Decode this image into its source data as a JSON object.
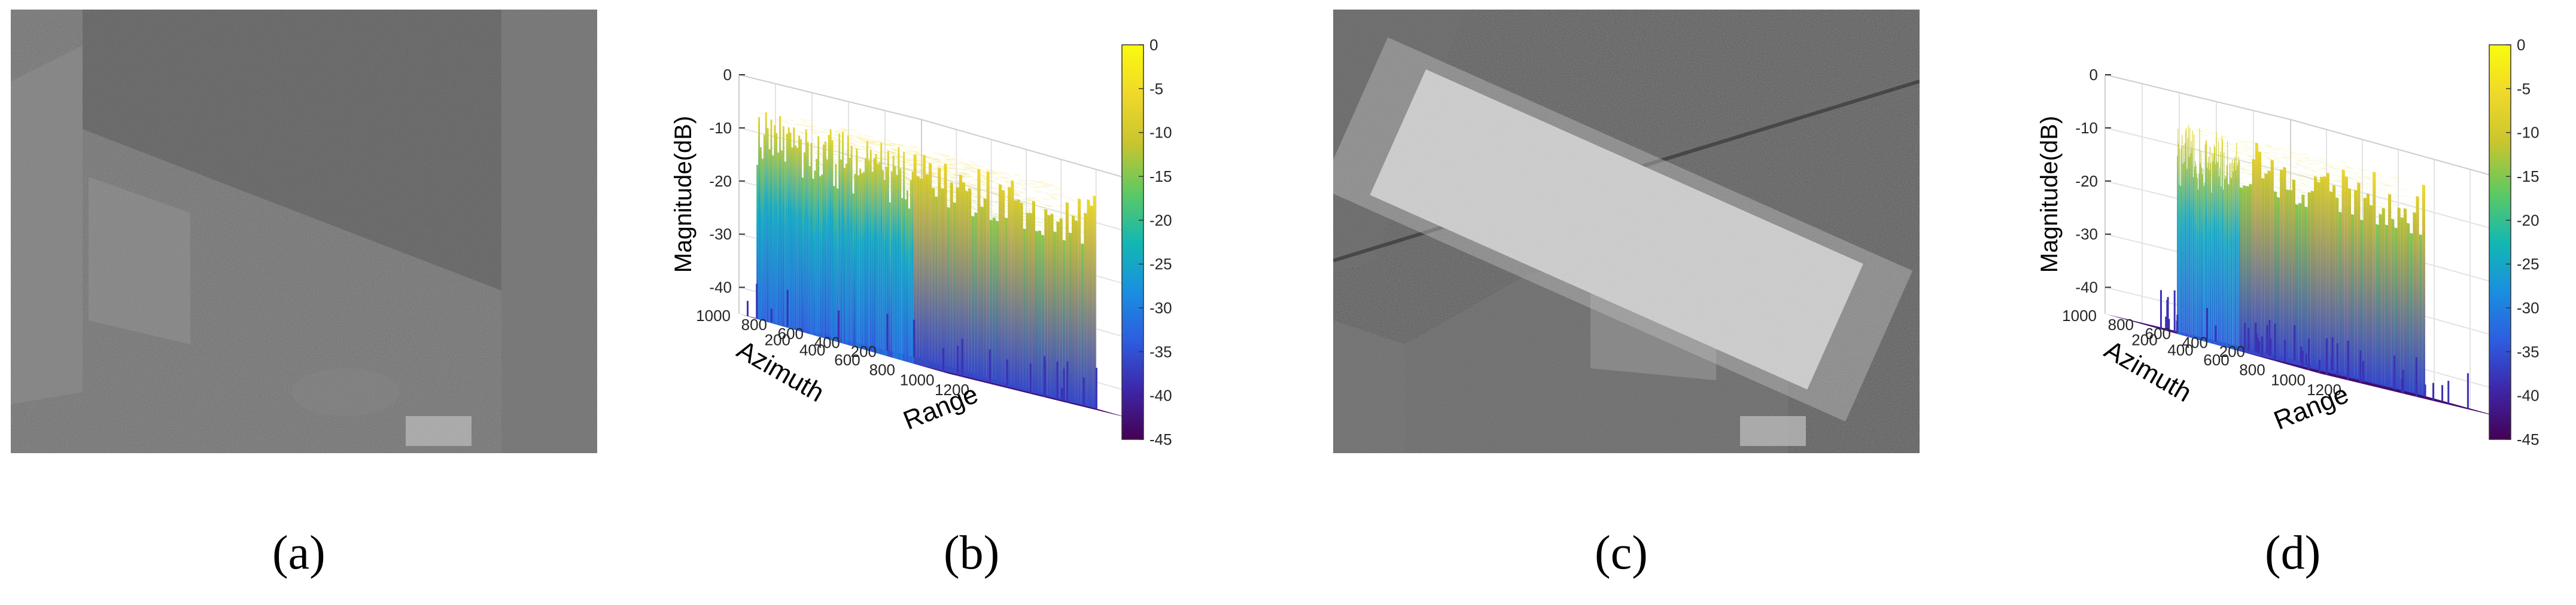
{
  "captions": [
    "(a)",
    "(b)",
    "(c)",
    "(d)"
  ],
  "chart_data": [
    {
      "type": "surface",
      "panel": "(b)",
      "zlabel": "Magnitude(dB)",
      "xlabel": "Range",
      "ylabel": "Azimuth",
      "zlim": [
        -45,
        0
      ],
      "zticks": [
        0,
        -10,
        -20,
        -30,
        -40
      ],
      "range_ticks": [
        200,
        400,
        600,
        800,
        1000,
        1200
      ],
      "azimuth_ticks": [
        200,
        400,
        600,
        800,
        1000
      ],
      "colorbar_ticks": [
        0,
        -5,
        -10,
        -15,
        -20,
        -25,
        -30,
        -35,
        -40,
        -45
      ],
      "colormap": [
        "#440154",
        "#3e26a8",
        "#2d5de0",
        "#1a8fe0",
        "#13b8b1",
        "#5ec962",
        "#c8c52e",
        "#f0d82a",
        "#f9fb0e"
      ],
      "noise_floor_db": -45,
      "jamming_region": {
        "range": [
          100,
          1000
        ],
        "azimuth": [
          0,
          1000
        ],
        "level_db": -5
      }
    },
    {
      "type": "surface",
      "panel": "(d)",
      "zlabel": "Magnitude(dB)",
      "xlabel": "Range",
      "ylabel": "Azimuth",
      "zlim": [
        -45,
        0
      ],
      "zticks": [
        0,
        -10,
        -20,
        -30,
        -40
      ],
      "range_ticks": [
        200,
        400,
        600,
        800,
        1000,
        1200
      ],
      "azimuth_ticks": [
        200,
        400,
        600,
        800,
        1000
      ],
      "colorbar_ticks": [
        0,
        -5,
        -10,
        -15,
        -20,
        -25,
        -30,
        -35,
        -40,
        -45
      ],
      "colormap": [
        "#440154",
        "#3e26a8",
        "#2d5de0",
        "#1a8fe0",
        "#13b8b1",
        "#5ec962",
        "#c8c52e",
        "#f0d82a",
        "#f9fb0e"
      ],
      "noise_floor_db": -45,
      "jamming_region": {
        "range": [
          400,
          750
        ],
        "azimuth": [
          0,
          1000
        ],
        "level_db": -5
      }
    }
  ]
}
